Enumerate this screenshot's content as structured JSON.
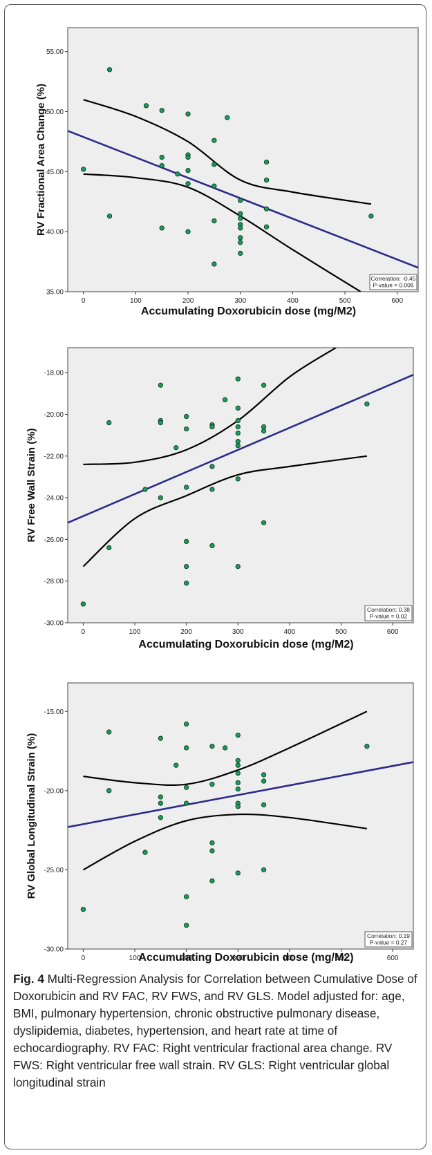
{
  "chart_data": [
    {
      "type": "scatter",
      "ylabel": "RV Fractional Area Change (%)",
      "xlabel": "Accumulating Doxorubicin dose (mg/M2)",
      "xlim": [
        -30,
        640
      ],
      "ylim": [
        35,
        57
      ],
      "xticks": [
        0,
        100,
        200,
        300,
        400,
        500,
        600
      ],
      "yticks": [
        35,
        40,
        45,
        50,
        55
      ],
      "ytick_labels": [
        "35.00",
        "40.00",
        "45.00",
        "50.00",
        "55.00"
      ],
      "points": [
        [
          0,
          45.2
        ],
        [
          50,
          53.5
        ],
        [
          50,
          41.3
        ],
        [
          120,
          50.5
        ],
        [
          150,
          50.1
        ],
        [
          150,
          46.2
        ],
        [
          150,
          45.5
        ],
        [
          150,
          40.3
        ],
        [
          180,
          44.8
        ],
        [
          200,
          49.8
        ],
        [
          200,
          46.4
        ],
        [
          200,
          46.2
        ],
        [
          200,
          45.1
        ],
        [
          200,
          44.0
        ],
        [
          200,
          40.0
        ],
        [
          250,
          47.6
        ],
        [
          250,
          45.6
        ],
        [
          250,
          43.8
        ],
        [
          250,
          40.9
        ],
        [
          250,
          37.3
        ],
        [
          275,
          49.5
        ],
        [
          300,
          42.6
        ],
        [
          300,
          41.5
        ],
        [
          300,
          41.1
        ],
        [
          300,
          40.6
        ],
        [
          300,
          40.3
        ],
        [
          300,
          39.5
        ],
        [
          300,
          39.1
        ],
        [
          300,
          38.2
        ],
        [
          350,
          45.8
        ],
        [
          350,
          44.3
        ],
        [
          350,
          41.9
        ],
        [
          350,
          40.4
        ],
        [
          550,
          41.3
        ]
      ],
      "fit_line": [
        [
          -30,
          48.4
        ],
        [
          640,
          37.0
        ]
      ],
      "ci_upper": [
        [
          0,
          51.0
        ],
        [
          100,
          49.6
        ],
        [
          200,
          47.5
        ],
        [
          300,
          44.3
        ],
        [
          400,
          43.3
        ],
        [
          550,
          42.3
        ]
      ],
      "ci_lower": [
        [
          0,
          44.8
        ],
        [
          100,
          44.5
        ],
        [
          200,
          43.7
        ],
        [
          300,
          41.3
        ],
        [
          400,
          38.5
        ],
        [
          530,
          35.0
        ]
      ],
      "annotation": [
        "Correlation: -0.45",
        "P-value = 0.006"
      ]
    },
    {
      "type": "scatter",
      "ylabel": "RV Free Wall Strain (%)",
      "xlabel": "Accumulating Doxorubicin dose (mg/M2)",
      "xlim": [
        -30,
        640
      ],
      "ylim": [
        -30,
        -16.8
      ],
      "xticks": [
        0,
        100,
        200,
        300,
        400,
        500,
        600
      ],
      "yticks": [
        -30,
        -28,
        -26,
        -24,
        -22,
        -20,
        -18
      ],
      "ytick_labels": [
        "-30.00",
        "-28.00",
        "-26.00",
        "-24.00",
        "-22.00",
        "-20.00",
        "-18.00"
      ],
      "points": [
        [
          0,
          -29.1
        ],
        [
          50,
          -20.4
        ],
        [
          50,
          -26.4
        ],
        [
          120,
          -23.6
        ],
        [
          150,
          -18.6
        ],
        [
          150,
          -20.3
        ],
        [
          150,
          -20.4
        ],
        [
          150,
          -24.0
        ],
        [
          180,
          -21.6
        ],
        [
          200,
          -20.1
        ],
        [
          200,
          -20.7
        ],
        [
          200,
          -23.5
        ],
        [
          200,
          -26.1
        ],
        [
          200,
          -27.3
        ],
        [
          200,
          -28.1
        ],
        [
          250,
          -20.5
        ],
        [
          250,
          -20.6
        ],
        [
          250,
          -22.5
        ],
        [
          250,
          -23.6
        ],
        [
          250,
          -26.3
        ],
        [
          275,
          -19.3
        ],
        [
          300,
          -18.3
        ],
        [
          300,
          -19.7
        ],
        [
          300,
          -20.3
        ],
        [
          300,
          -20.6
        ],
        [
          300,
          -20.9
        ],
        [
          300,
          -21.3
        ],
        [
          300,
          -21.5
        ],
        [
          300,
          -23.1
        ],
        [
          300,
          -27.3
        ],
        [
          350,
          -18.6
        ],
        [
          350,
          -20.6
        ],
        [
          350,
          -20.8
        ],
        [
          350,
          -25.2
        ],
        [
          550,
          -19.5
        ]
      ],
      "fit_line": [
        [
          -30,
          -25.2
        ],
        [
          640,
          -18.1
        ]
      ],
      "ci_upper": [
        [
          0,
          -22.4
        ],
        [
          100,
          -22.3
        ],
        [
          200,
          -21.7
        ],
        [
          300,
          -20.3
        ],
        [
          400,
          -18.2
        ],
        [
          490,
          -16.8
        ]
      ],
      "ci_lower": [
        [
          0,
          -27.3
        ],
        [
          100,
          -25.0
        ],
        [
          200,
          -23.9
        ],
        [
          300,
          -22.9
        ],
        [
          400,
          -22.5
        ],
        [
          550,
          -22.0
        ]
      ],
      "annotation": [
        "Correlation: 0.38",
        "P-value = 0.02"
      ]
    },
    {
      "type": "scatter",
      "ylabel": "RV Global Longitudinal Strain (%)",
      "xlabel": "Accumulating Doxorubicin dose (mg/M2)",
      "xlim": [
        -30,
        640
      ],
      "ylim": [
        -30,
        -13.2
      ],
      "xticks": [
        0,
        100,
        200,
        300,
        400,
        500,
        600
      ],
      "yticks": [
        -30,
        -25,
        -20,
        -15
      ],
      "ytick_labels": [
        "-30.00",
        "-25.00",
        "-20.00",
        "-15.00"
      ],
      "points": [
        [
          0,
          -27.5
        ],
        [
          50,
          -16.3
        ],
        [
          50,
          -20.0
        ],
        [
          120,
          -23.9
        ],
        [
          150,
          -16.7
        ],
        [
          150,
          -20.4
        ],
        [
          150,
          -20.8
        ],
        [
          150,
          -21.7
        ],
        [
          180,
          -18.4
        ],
        [
          200,
          -15.8
        ],
        [
          200,
          -17.3
        ],
        [
          200,
          -19.8
        ],
        [
          200,
          -20.8
        ],
        [
          200,
          -26.7
        ],
        [
          200,
          -28.5
        ],
        [
          250,
          -17.2
        ],
        [
          250,
          -19.6
        ],
        [
          250,
          -23.3
        ],
        [
          250,
          -23.8
        ],
        [
          250,
          -25.7
        ],
        [
          275,
          -17.3
        ],
        [
          300,
          -16.5
        ],
        [
          300,
          -18.1
        ],
        [
          300,
          -18.4
        ],
        [
          300,
          -18.9
        ],
        [
          300,
          -19.5
        ],
        [
          300,
          -19.9
        ],
        [
          300,
          -20.8
        ],
        [
          300,
          -21.0
        ],
        [
          300,
          -25.2
        ],
        [
          350,
          -19.0
        ],
        [
          350,
          -19.4
        ],
        [
          350,
          -20.9
        ],
        [
          350,
          -25.0
        ],
        [
          550,
          -17.2
        ]
      ],
      "fit_line": [
        [
          -30,
          -22.3
        ],
        [
          640,
          -18.2
        ]
      ],
      "ci_upper": [
        [
          0,
          -19.1
        ],
        [
          100,
          -19.5
        ],
        [
          200,
          -19.6
        ],
        [
          300,
          -18.7
        ],
        [
          400,
          -17.3
        ],
        [
          550,
          -15.0
        ]
      ],
      "ci_lower": [
        [
          0,
          -25.0
        ],
        [
          100,
          -23.2
        ],
        [
          200,
          -21.9
        ],
        [
          300,
          -21.5
        ],
        [
          400,
          -21.7
        ],
        [
          550,
          -22.4
        ]
      ],
      "annotation": [
        "Correlation: 0.19",
        "P-value = 0.27"
      ]
    }
  ],
  "caption": {
    "label": "Fig. 4",
    "title": "Multi-Regression Analysis for Correlation between Cumulative Dose of Doxorubicin and RV FAC, RV FWS, and RV GLS.",
    "body": "Model adjusted for: age, BMI, pulmonary hypertension, chronic obstructive pulmonary disease, dyslipidemia, diabetes, hypertension, and heart rate at time of echocardiography. RV FAC: Right ventricular fractional area change. RV FWS: Right ventricular free wall strain. RV GLS: Right ventricular global longitudinal strain"
  },
  "colors": {
    "panel_bg": "#eeeeee",
    "point_fill": "#1f9a5e",
    "point_stroke": "#0a3a20",
    "fit_line": "#2b2b8c",
    "ci_line": "#000000"
  }
}
